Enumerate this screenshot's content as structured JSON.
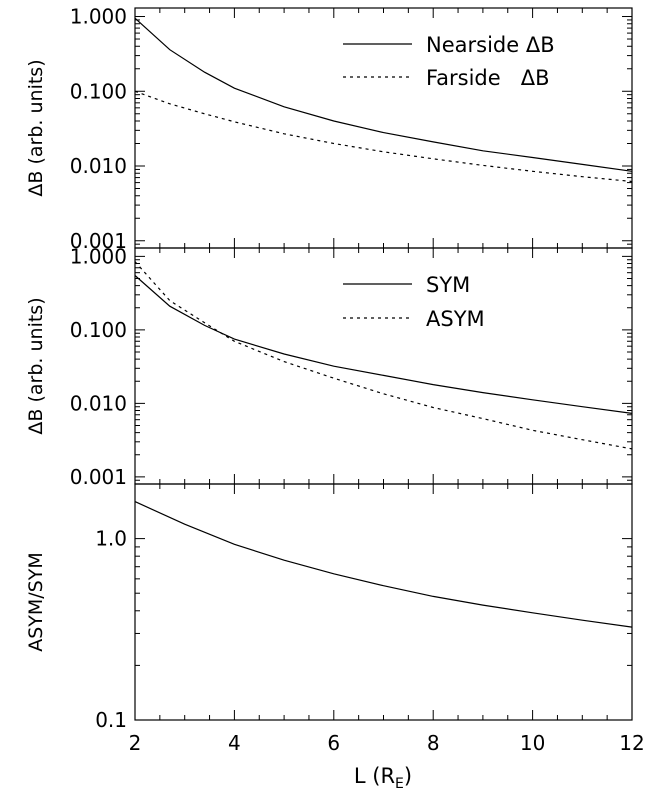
{
  "chart_data": [
    {
      "type": "line",
      "ylabel": "ΔB (arb. units)",
      "yscale": "log",
      "ylim": [
        0.0008,
        1.3
      ],
      "xlim": [
        2,
        12
      ],
      "yticks": [
        {
          "value": 0.001,
          "label": "0.001"
        },
        {
          "value": 0.01,
          "label": "0.010"
        },
        {
          "value": 0.1,
          "label": "0.100"
        },
        {
          "value": 1.0,
          "label": "1.000"
        }
      ],
      "legend_position": "top-right",
      "series": [
        {
          "name": "Nearside ΔB",
          "style": "solid",
          "x": [
            2,
            2.7,
            3.4,
            4,
            5,
            6,
            7,
            8,
            9,
            10,
            11,
            12
          ],
          "y": [
            0.95,
            0.36,
            0.18,
            0.11,
            0.062,
            0.04,
            0.028,
            0.021,
            0.016,
            0.013,
            0.0105,
            0.0085
          ]
        },
        {
          "name": "Farside   ΔB",
          "style": "dashed",
          "x": [
            2,
            2.7,
            3.4,
            4,
            5,
            6,
            7,
            8,
            9,
            10,
            11,
            12
          ],
          "y": [
            0.1,
            0.068,
            0.05,
            0.039,
            0.027,
            0.02,
            0.0155,
            0.0125,
            0.0102,
            0.0085,
            0.0072,
            0.0062
          ]
        }
      ]
    },
    {
      "type": "line",
      "ylabel": "ΔB (arb. units)",
      "yscale": "log",
      "ylim": [
        0.0008,
        1.3
      ],
      "xlim": [
        2,
        12
      ],
      "yticks": [
        {
          "value": 0.001,
          "label": "0.001"
        },
        {
          "value": 0.01,
          "label": "0.010"
        },
        {
          "value": 0.1,
          "label": "0.100"
        },
        {
          "value": 1.0,
          "label": "1.000"
        }
      ],
      "legend_position": "top-right",
      "series": [
        {
          "name": "SYM",
          "style": "solid",
          "x": [
            2,
            2.7,
            3.4,
            4,
            5,
            6,
            7,
            8,
            9,
            10,
            11,
            12
          ],
          "y": [
            0.55,
            0.21,
            0.115,
            0.075,
            0.047,
            0.032,
            0.024,
            0.018,
            0.014,
            0.0112,
            0.009,
            0.0073
          ]
        },
        {
          "name": "ASYM",
          "style": "dashed",
          "x": [
            2,
            2.7,
            3.4,
            4,
            5,
            6,
            7,
            8,
            9,
            10,
            11,
            12
          ],
          "y": [
            0.85,
            0.25,
            0.125,
            0.07,
            0.037,
            0.022,
            0.0135,
            0.0088,
            0.0062,
            0.0043,
            0.0032,
            0.0024
          ]
        }
      ]
    },
    {
      "type": "line",
      "ylabel": "ASYM/SYM",
      "xlabel": "L (R",
      "xlabel_sub": "E",
      "xlabel_tail": ")",
      "yscale": "log",
      "ylim": [
        0.1,
        2.0
      ],
      "xlim": [
        2,
        12
      ],
      "yticks": [
        {
          "value": 0.1,
          "label": "0.1"
        },
        {
          "value": 1.0,
          "label": "1.0"
        }
      ],
      "xticks": [
        {
          "value": 2,
          "label": "2"
        },
        {
          "value": 4,
          "label": "4"
        },
        {
          "value": 6,
          "label": "6"
        },
        {
          "value": 8,
          "label": "8"
        },
        {
          "value": 10,
          "label": "10"
        },
        {
          "value": 12,
          "label": "12"
        }
      ],
      "series": [
        {
          "style": "solid",
          "x": [
            2,
            3,
            4,
            5,
            6,
            7,
            8,
            9,
            10,
            11,
            12
          ],
          "y": [
            1.6,
            1.2,
            0.93,
            0.76,
            0.64,
            0.55,
            0.48,
            0.43,
            0.39,
            0.355,
            0.325
          ]
        }
      ]
    }
  ]
}
